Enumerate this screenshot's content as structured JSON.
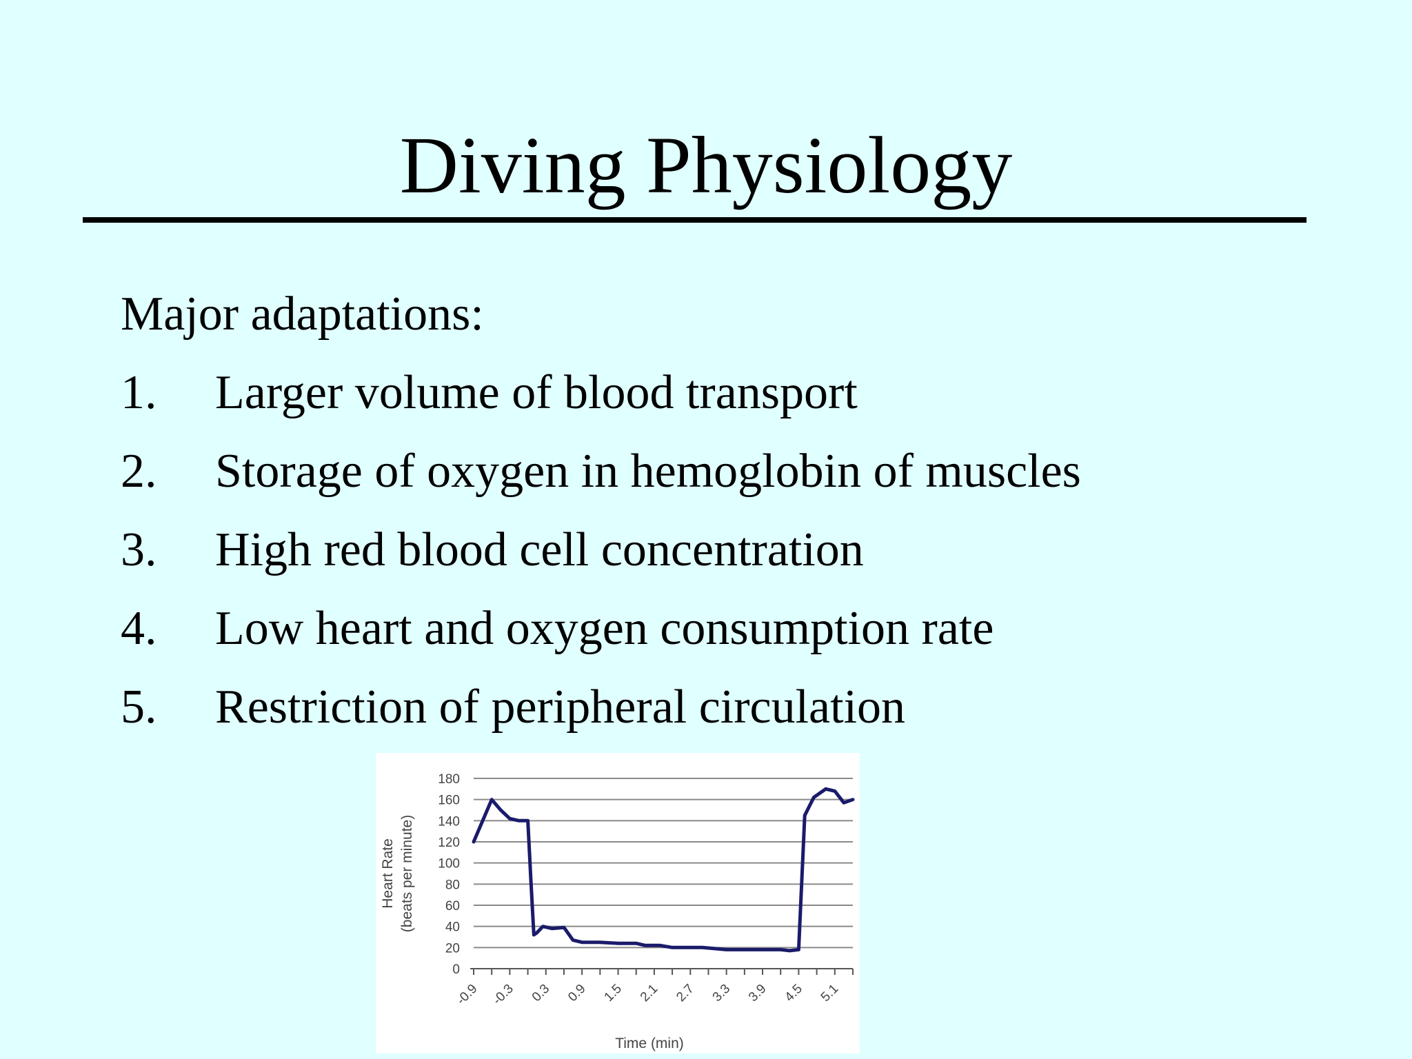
{
  "slide": {
    "title": "Diving Physiology",
    "intro": "Major adaptations:",
    "items": [
      {
        "num": "1.",
        "text": "Larger volume of blood transport"
      },
      {
        "num": "2.",
        "text": "Storage of oxygen in hemoglobin of muscles"
      },
      {
        "num": "3.",
        "text": "High red blood cell concentration"
      },
      {
        "num": "4.",
        "text": "Low heart and oxygen consumption rate"
      },
      {
        "num": "5.",
        "text": "Restriction of peripheral circulation"
      }
    ],
    "background_color": "#e0ffff",
    "line_color": "#1b1b6b"
  },
  "chart_data": {
    "type": "line",
    "title": "",
    "xlabel": "Time (min)",
    "ylabel_line1": "Heart Rate",
    "ylabel_line2": "(beats per minute)",
    "ylim": [
      0,
      180
    ],
    "yticks": [
      0,
      20,
      40,
      60,
      80,
      100,
      120,
      140,
      160,
      180
    ],
    "xlim": [
      -0.9,
      5.4
    ],
    "xtick_labels": [
      "-0.9",
      "-0.3",
      "0.3",
      "0.9",
      "1.5",
      "2.1",
      "2.7",
      "3.3",
      "3.9",
      "4.5",
      "5.1"
    ],
    "grid": true,
    "legend": "none",
    "series": [
      {
        "x": [
          -0.9,
          -0.6,
          -0.45,
          -0.3,
          -0.15,
          0.0,
          0.05,
          0.1,
          0.15,
          0.25,
          0.4,
          0.6,
          0.75,
          0.9,
          1.2,
          1.5,
          1.8,
          1.95,
          2.2,
          2.4,
          2.7,
          2.9,
          3.3,
          3.6,
          3.9,
          4.2,
          4.35,
          4.5,
          4.6,
          4.75,
          4.95,
          5.1,
          5.25,
          5.4
        ],
        "y": [
          120,
          160,
          150,
          142,
          140,
          140,
          85,
          32,
          34,
          40,
          38,
          39,
          27,
          25,
          25,
          24,
          24,
          22,
          22,
          20,
          20,
          20,
          18,
          18,
          18,
          18,
          17,
          18,
          145,
          162,
          170,
          168,
          157,
          160
        ]
      }
    ]
  }
}
